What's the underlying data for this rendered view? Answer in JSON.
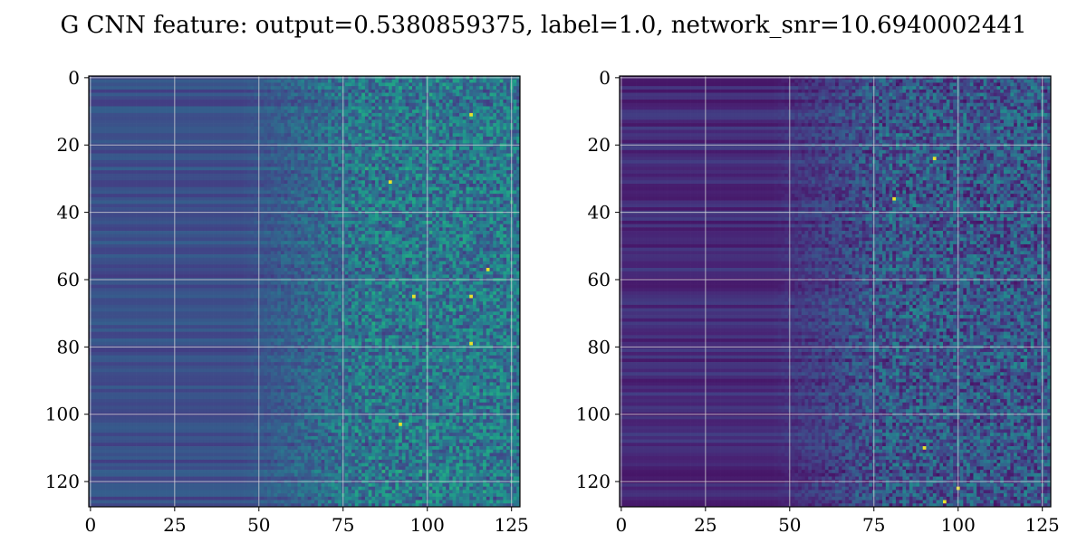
{
  "figure": {
    "title": "G CNN feature: output=0.5380859375, label=1.0, network_snr=10.6940002441"
  },
  "chart_data": [
    {
      "type": "heatmap",
      "title": "",
      "xlabel": "",
      "ylabel": "",
      "shape": [
        128,
        128
      ],
      "xlim": [
        -0.5,
        127.5
      ],
      "ylim": [
        127.5,
        -0.5
      ],
      "y_inverted": true,
      "x_ticks": [
        0,
        25,
        50,
        75,
        100,
        125
      ],
      "y_ticks": [
        0,
        20,
        40,
        60,
        80,
        100,
        120
      ],
      "grid": true,
      "colormap": "viridis",
      "description_of_pattern": "columns 0-50 smooth horizontal banding at low-mid values; columns 50-75 gradual transition; columns 75-127 high-variance noisy cells with scattered bright (yellow) pixels",
      "bright_points": [
        [
          113,
          11
        ],
        [
          89,
          31
        ],
        [
          118,
          57
        ],
        [
          96,
          65
        ],
        [
          113,
          65
        ],
        [
          113,
          79
        ],
        [
          92,
          103
        ]
      ],
      "base_level": 0.3,
      "noise_level": 0.22
    },
    {
      "type": "heatmap",
      "title": "",
      "xlabel": "",
      "ylabel": "",
      "shape": [
        128,
        128
      ],
      "xlim": [
        -0.5,
        127.5
      ],
      "ylim": [
        127.5,
        -0.5
      ],
      "y_inverted": true,
      "x_ticks": [
        0,
        25,
        50,
        75,
        100,
        125
      ],
      "y_ticks": [
        0,
        20,
        40,
        60,
        80,
        100,
        120
      ],
      "grid": true,
      "colormap": "viridis",
      "description_of_pattern": "columns 0-50 darker smooth horizontal banding; columns 50-75 transition; columns 75-127 noisy cells with scattered bright (yellow) pixels",
      "bright_points": [
        [
          93,
          24
        ],
        [
          81,
          36
        ],
        [
          90,
          110
        ],
        [
          96,
          126
        ],
        [
          100,
          122
        ]
      ],
      "base_level": 0.15,
      "noise_level": 0.22
    }
  ]
}
